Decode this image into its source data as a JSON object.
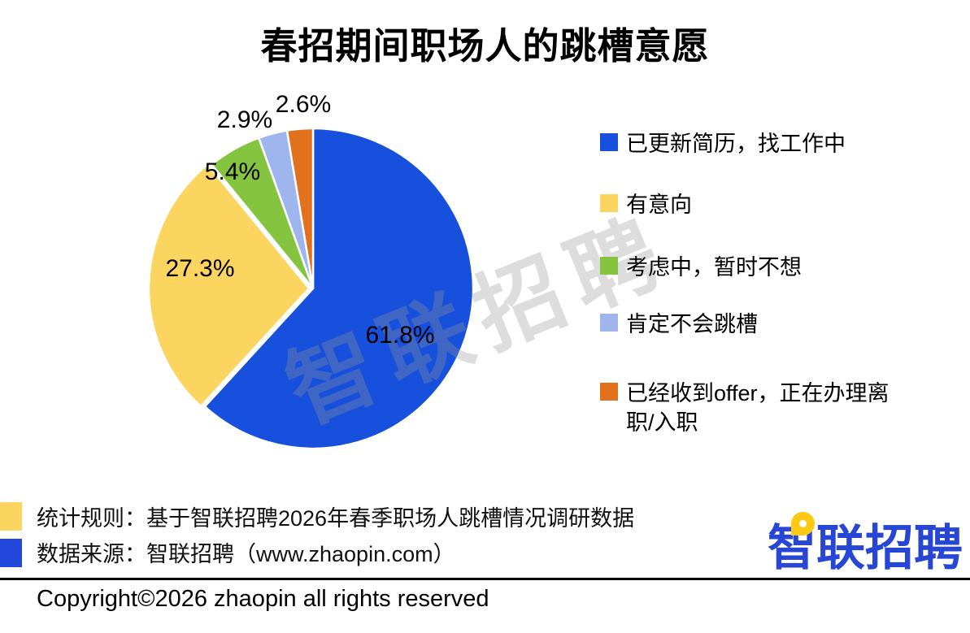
{
  "title": "春招期间职场人的跳槽意愿",
  "watermark": {
    "text": "智联招聘"
  },
  "chart_data": {
    "type": "pie",
    "title": "春招期间职场人的跳槽意愿",
    "unit": "%",
    "direction": "clockwise",
    "start_angle": "12-oclock",
    "legend_position": "right",
    "slices": [
      {
        "label": "已更新简历，找工作中",
        "value": 61.8,
        "display": "61.8%",
        "color": "#1750DC"
      },
      {
        "label": "有意向",
        "value": 27.3,
        "display": "27.3%",
        "color": "#FBD55F"
      },
      {
        "label": "考虑中，暂时不想",
        "value": 5.4,
        "display": "5.4%",
        "color": "#85C43F"
      },
      {
        "label": "肯定不会跳槽",
        "value": 2.9,
        "display": "2.9%",
        "color": "#9FB5ED"
      },
      {
        "label": "已经收到offer，正在办理离职/入职",
        "value": 2.6,
        "display": "2.6%",
        "color": "#E2711E"
      }
    ]
  },
  "footer": {
    "line1": "统计规则：基于智联招聘2026年春季职场人跳槽情况调研数据",
    "line2": "数据来源：智联招聘（www.zhaopin.com）",
    "bullets": [
      {
        "color": "#FBD55F"
      },
      {
        "color": "#2147DB"
      }
    ]
  },
  "logo": {
    "text": "智联招聘"
  },
  "copyright": "Copyright©2026 zhaopin all rights reserved"
}
